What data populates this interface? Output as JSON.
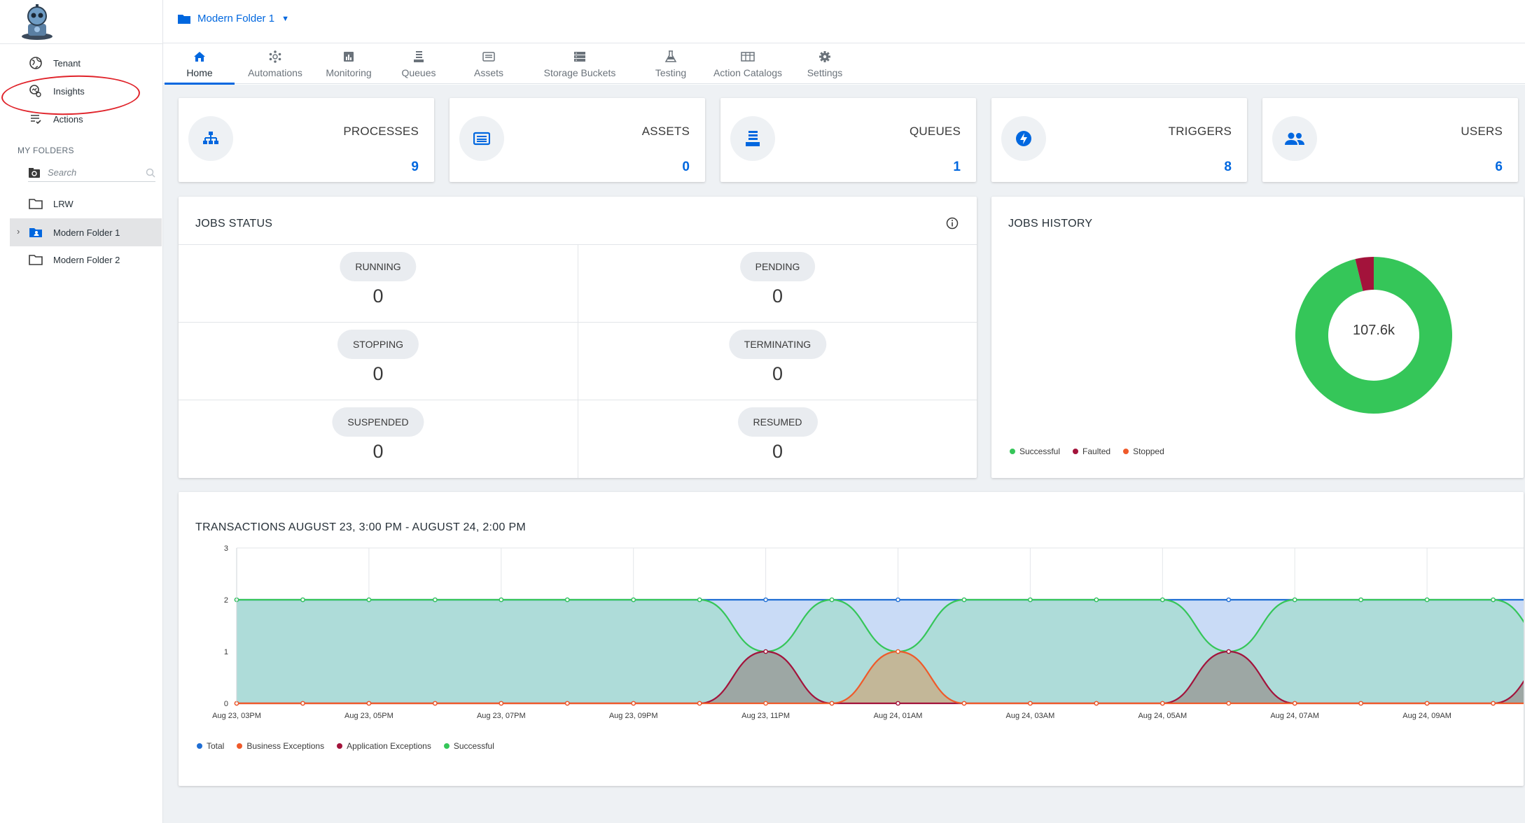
{
  "sidebar": {
    "items": [
      {
        "label": "Tenant",
        "icon": "globe-icon"
      },
      {
        "label": "Insights",
        "icon": "insights-icon"
      },
      {
        "label": "Actions",
        "icon": "actions-icon"
      }
    ],
    "section_title": "MY FOLDERS",
    "search_placeholder": "Search",
    "folders": [
      {
        "label": "LRW",
        "icon": "folder-icon"
      },
      {
        "label": "Modern Folder 1",
        "icon": "folder-user-icon",
        "selected": true
      },
      {
        "label": "Modern Folder 2",
        "icon": "folder-icon"
      }
    ]
  },
  "topbar": {
    "folder_name": "Modern Folder 1"
  },
  "tabs": [
    {
      "label": "Home",
      "icon": "home-icon",
      "active": true
    },
    {
      "label": "Automations",
      "icon": "automations-icon"
    },
    {
      "label": "Monitoring",
      "icon": "monitoring-icon"
    },
    {
      "label": "Queues",
      "icon": "queues-icon"
    },
    {
      "label": "Assets",
      "icon": "assets-icon"
    },
    {
      "label": "Storage Buckets",
      "icon": "storage-icon"
    },
    {
      "label": "Testing",
      "icon": "flask-icon"
    },
    {
      "label": "Action Catalogs",
      "icon": "catalog-icon"
    },
    {
      "label": "Settings",
      "icon": "gear-icon"
    }
  ],
  "stats": [
    {
      "label": "PROCESSES",
      "value": "9",
      "icon": "sitemap-icon"
    },
    {
      "label": "ASSETS",
      "value": "0",
      "icon": "asset-icon"
    },
    {
      "label": "QUEUES",
      "value": "1",
      "icon": "queue-icon"
    },
    {
      "label": "TRIGGERS",
      "value": "8",
      "icon": "bolt-icon"
    },
    {
      "label": "USERS",
      "value": "6",
      "icon": "users-icon"
    }
  ],
  "jobs_status": {
    "title": "JOBS STATUS",
    "cells": [
      {
        "label": "RUNNING",
        "value": "0"
      },
      {
        "label": "PENDING",
        "value": "0"
      },
      {
        "label": "STOPPING",
        "value": "0"
      },
      {
        "label": "TERMINATING",
        "value": "0"
      },
      {
        "label": "SUSPENDED",
        "value": "0"
      },
      {
        "label": "RESUMED",
        "value": "0"
      }
    ]
  },
  "jobs_history": {
    "title": "JOBS HISTORY",
    "center_label": "107.6k",
    "legend": [
      {
        "label": "Successful",
        "color": "#35c659"
      },
      {
        "label": "Faulted",
        "color": "#a3133b"
      },
      {
        "label": "Stopped",
        "color": "#ef5a2a"
      }
    ]
  },
  "transactions": {
    "title": "TRANSACTIONS AUGUST 23, 3:00 PM - AUGUST 24, 2:00 PM",
    "legend": [
      {
        "label": "Total",
        "color": "#1f6ed4"
      },
      {
        "label": "Business Exceptions",
        "color": "#ef5a2a"
      },
      {
        "label": "Application Exceptions",
        "color": "#a3133b"
      },
      {
        "label": "Successful",
        "color": "#35c659"
      }
    ]
  },
  "chart_data": [
    {
      "type": "pie",
      "title": "JOBS HISTORY",
      "center_label": "107.6k",
      "categories": [
        "Successful",
        "Faulted",
        "Stopped"
      ],
      "values": [
        0.962,
        0.038,
        0.0
      ],
      "colors": [
        "#35c659",
        "#a3133b",
        "#ef5a2a"
      ],
      "legend": "bottom-left"
    },
    {
      "type": "area",
      "title": "TRANSACTIONS AUGUST 23, 3:00 PM - AUGUST 24, 2:00 PM",
      "x_tick_labels": [
        "Aug 23, 03PM",
        "Aug 23, 05PM",
        "Aug 23, 07PM",
        "Aug 23, 09PM",
        "Aug 23, 11PM",
        "Aug 24, 01AM",
        "Aug 24, 03AM",
        "Aug 24, 05AM",
        "Aug 24, 07AM",
        "Aug 24, 09AM"
      ],
      "x": [
        "Aug 23, 03PM",
        "Aug 23, 04PM",
        "Aug 23, 05PM",
        "Aug 23, 06PM",
        "Aug 23, 07PM",
        "Aug 23, 08PM",
        "Aug 23, 09PM",
        "Aug 23, 10PM",
        "Aug 23, 11PM",
        "Aug 24, 12AM",
        "Aug 24, 01AM",
        "Aug 24, 02AM",
        "Aug 24, 03AM",
        "Aug 24, 04AM",
        "Aug 24, 05AM",
        "Aug 24, 06AM",
        "Aug 24, 07AM",
        "Aug 24, 08AM",
        "Aug 24, 09AM",
        "Aug 24, 10AM",
        "Aug 24, 11AM"
      ],
      "ylim": [
        0,
        3
      ],
      "y_ticks": [
        0,
        1,
        2,
        3
      ],
      "grid": true,
      "legend": "bottom-left",
      "series": [
        {
          "name": "Total",
          "color": "#1f6ed4",
          "values": [
            2,
            2,
            2,
            2,
            2,
            2,
            2,
            2,
            2,
            2,
            2,
            2,
            2,
            2,
            2,
            2,
            2,
            2,
            2,
            2,
            2
          ]
        },
        {
          "name": "Business Exceptions",
          "color": "#ef5a2a",
          "values": [
            0,
            0,
            0,
            0,
            0,
            0,
            0,
            0,
            0,
            0,
            1,
            0,
            0,
            0,
            0,
            0,
            0,
            0,
            0,
            0,
            0
          ]
        },
        {
          "name": "Application Exceptions",
          "color": "#a3133b",
          "values": [
            0,
            0,
            0,
            0,
            0,
            0,
            0,
            0,
            1,
            0,
            0,
            0,
            0,
            0,
            0,
            1,
            0,
            0,
            0,
            0,
            1
          ]
        },
        {
          "name": "Successful",
          "color": "#35c659",
          "values": [
            2,
            2,
            2,
            2,
            2,
            2,
            2,
            2,
            1,
            2,
            1,
            2,
            2,
            2,
            2,
            1,
            2,
            2,
            2,
            2,
            1
          ]
        }
      ]
    }
  ]
}
